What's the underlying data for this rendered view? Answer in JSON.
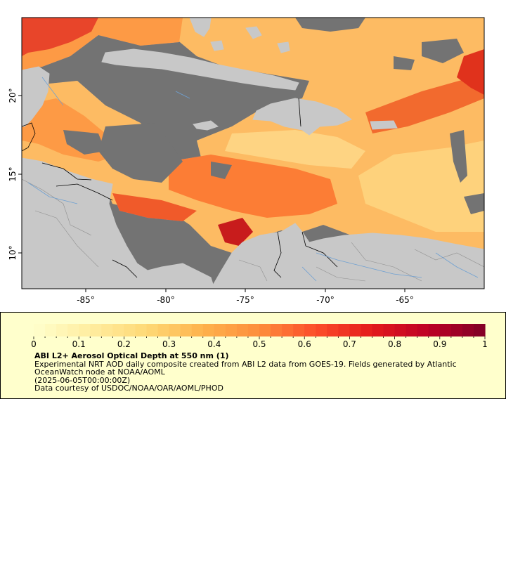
{
  "map": {
    "title": "",
    "x_ticks": [
      "-85°",
      "-80°",
      "-75°",
      "-70°",
      "-65°"
    ],
    "y_ticks": [
      "20°",
      "15°",
      "10°"
    ],
    "colors": {
      "ocean_no_data": "#737373",
      "land": "#c8c8c8",
      "rivers": "#6ea0d2",
      "borders": "#000000"
    }
  },
  "colorbar": {
    "min": 0,
    "max": 1,
    "tick_labels": [
      "0",
      "0.1",
      "0.2",
      "0.3",
      "0.4",
      "0.5",
      "0.6",
      "0.7",
      "0.8",
      "0.9",
      "1"
    ],
    "colors": [
      "#ffffcc",
      "#ffeda0",
      "#fed976",
      "#feb24c",
      "#fd8d3c",
      "#fc4e2a",
      "#e31a1c",
      "#bd0026",
      "#800026"
    ]
  },
  "legend": {
    "title": "ABI L2+ Aerosol Optical Depth at 550 nm (1)",
    "line1": "Experimental NRT AOD daily composite created from ABI L2 data from GOES-19. Fields generated by Atlantic",
    "line2": "OceanWatch node at NOAA/AOML",
    "line3": "(2025-06-05T00:00:00Z)",
    "line4": "Data courtesy of USDOC/NOAA/OAR/AOML/PHOD",
    "background": "#ffffcc"
  }
}
